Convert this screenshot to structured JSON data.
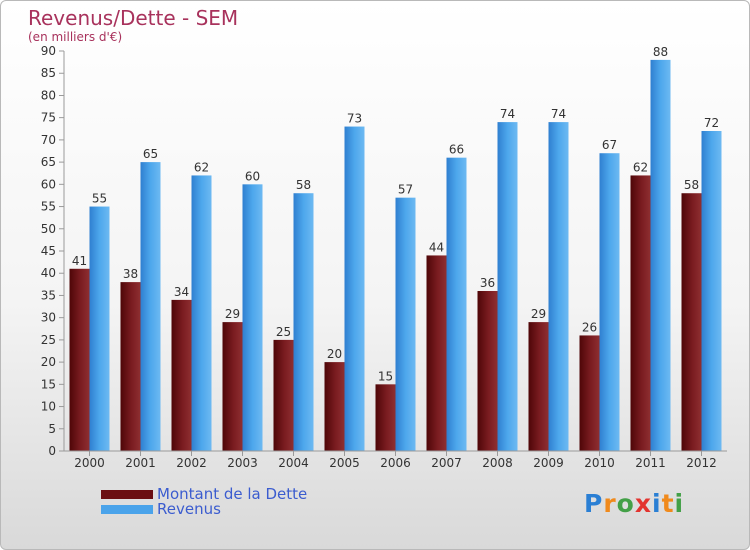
{
  "title": "Revenus/Dette - SEM",
  "subtitle": "(en milliers d'€)",
  "logo": {
    "text": "Proxiti",
    "letters": [
      "P",
      "r",
      "o",
      "x",
      "i",
      "t",
      "i"
    ],
    "colors": [
      "#2a7fd4",
      "#f08a1c",
      "#43a047",
      "#e3342f",
      "#2a7fd4",
      "#f08a1c",
      "#43a047"
    ]
  },
  "legend": [
    {
      "label": "Montant de la Dette",
      "color": "#6b0f12"
    },
    {
      "label": "Revenus",
      "color": "#4aa3ea"
    }
  ],
  "chart_data": {
    "type": "bar",
    "title": "Revenus/Dette - SEM",
    "subtitle": "(en milliers d'€)",
    "xlabel": "",
    "ylabel": "",
    "ylim": [
      0,
      90
    ],
    "yticks": [
      0,
      5,
      10,
      15,
      20,
      25,
      30,
      35,
      40,
      45,
      50,
      55,
      60,
      65,
      70,
      75,
      80,
      85,
      90
    ],
    "grid": false,
    "legend_position": "bottom-left",
    "categories": [
      "2000",
      "2001",
      "2002",
      "2003",
      "2004",
      "2005",
      "2006",
      "2007",
      "2008",
      "2009",
      "2010",
      "2011",
      "2012"
    ],
    "series": [
      {
        "name": "Montant de la Dette",
        "color": "#6b0f12",
        "values": [
          41,
          38,
          34,
          29,
          25,
          20,
          15,
          44,
          36,
          29,
          26,
          62,
          58
        ]
      },
      {
        "name": "Revenus",
        "color": "#4aa3ea",
        "values": [
          55,
          65,
          62,
          60,
          58,
          73,
          57,
          66,
          74,
          74,
          67,
          88,
          72
        ]
      }
    ]
  }
}
